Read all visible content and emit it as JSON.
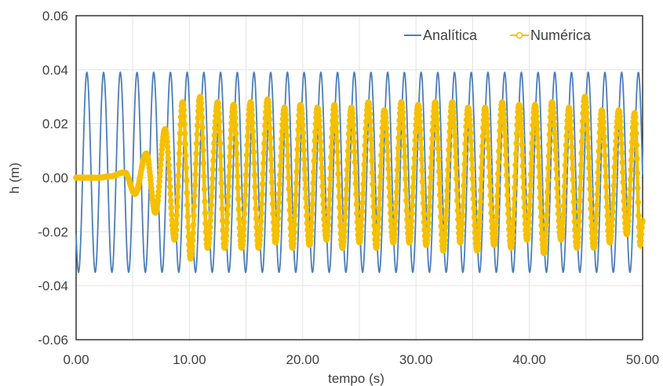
{
  "chart_data": {
    "type": "line",
    "xlabel": "tempo (s)",
    "ylabel": "h (m)",
    "xlim": [
      0,
      50
    ],
    "ylim": [
      -0.06,
      0.06
    ],
    "x_ticks": [
      "0.00",
      "10.00",
      "20.00",
      "30.00",
      "40.00",
      "50.00"
    ],
    "y_ticks": [
      "-0.06",
      "-0.04",
      "-0.02",
      "0.00",
      "0.02",
      "0.04",
      "0.06"
    ],
    "grid": "vertical and horizontal",
    "legend_position": "top-right",
    "series": [
      {
        "name": "Analítica",
        "color": "#4a7ebb",
        "marker": "none",
        "amplitude_max": 0.039,
        "amplitude_min": -0.035,
        "period_s": 1.475,
        "first_peak_s": 0.95
      },
      {
        "name": "Numérica",
        "color": "#f5c000",
        "marker": "circle",
        "description_points": [
          [
            0.0,
            0.0
          ],
          [
            2.0,
            0.0
          ],
          [
            3.0,
            0.0005
          ],
          [
            4.3,
            0.002
          ],
          [
            5.2,
            -0.006
          ],
          [
            6.2,
            0.009
          ],
          [
            7.0,
            -0.013
          ],
          [
            7.85,
            0.018
          ],
          [
            8.7,
            -0.023
          ],
          [
            9.4,
            0.028
          ],
          [
            10.1,
            -0.03
          ],
          [
            10.95,
            0.03
          ],
          [
            11.6,
            -0.026
          ],
          [
            12.5,
            0.028
          ],
          [
            13.1,
            -0.026
          ],
          [
            13.9,
            0.027
          ],
          [
            14.6,
            -0.026
          ],
          [
            15.4,
            0.028
          ],
          [
            16.1,
            -0.026
          ],
          [
            16.9,
            0.029
          ],
          [
            17.6,
            -0.024
          ],
          [
            18.4,
            0.026
          ],
          [
            19.1,
            -0.026
          ],
          [
            19.8,
            0.027
          ],
          [
            20.6,
            -0.025
          ],
          [
            21.3,
            0.026
          ],
          [
            22.1,
            -0.023
          ],
          [
            22.8,
            0.027
          ],
          [
            23.5,
            -0.026
          ],
          [
            24.3,
            0.026
          ],
          [
            25.0,
            -0.024
          ],
          [
            25.8,
            0.028
          ],
          [
            26.5,
            -0.026
          ],
          [
            27.2,
            0.025
          ],
          [
            28.0,
            -0.024
          ],
          [
            28.7,
            0.028
          ],
          [
            29.4,
            -0.024
          ],
          [
            30.2,
            0.027
          ],
          [
            30.9,
            -0.025
          ],
          [
            31.7,
            0.028
          ],
          [
            32.4,
            -0.027
          ],
          [
            33.2,
            0.028
          ],
          [
            33.9,
            -0.024
          ],
          [
            34.6,
            0.026
          ],
          [
            35.4,
            -0.027
          ],
          [
            36.1,
            0.026
          ],
          [
            36.9,
            -0.025
          ],
          [
            37.6,
            0.028
          ],
          [
            38.4,
            -0.026
          ],
          [
            39.1,
            0.027
          ],
          [
            39.8,
            -0.023
          ],
          [
            40.5,
            0.027
          ],
          [
            41.3,
            -0.028
          ],
          [
            42.0,
            0.028
          ],
          [
            42.8,
            -0.023
          ],
          [
            43.5,
            0.026
          ],
          [
            44.2,
            -0.026
          ],
          [
            44.9,
            0.03
          ],
          [
            45.7,
            -0.026
          ],
          [
            46.4,
            0.025
          ],
          [
            47.1,
            -0.024
          ],
          [
            47.9,
            0.025
          ],
          [
            48.6,
            -0.021
          ],
          [
            49.3,
            0.024
          ],
          [
            49.8,
            -0.025
          ],
          [
            50.0,
            -0.016
          ]
        ]
      }
    ]
  }
}
